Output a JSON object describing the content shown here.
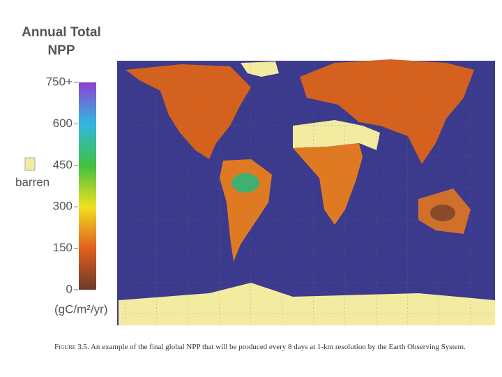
{
  "legend": {
    "title": [
      "Annual Total",
      "NPP"
    ],
    "ticks": [
      0,
      150,
      300,
      450,
      600,
      {
        "value": 750,
        "label": "750+"
      }
    ],
    "range": [
      0,
      750
    ],
    "barren": "barren",
    "unit": "(gC/m²/yr)"
  },
  "caption": {
    "label": "Figure 3.5.",
    "text": "An example of the final global NPP that will be produced every 8 days at 1-km resolution by the Earth Observing System."
  }
}
